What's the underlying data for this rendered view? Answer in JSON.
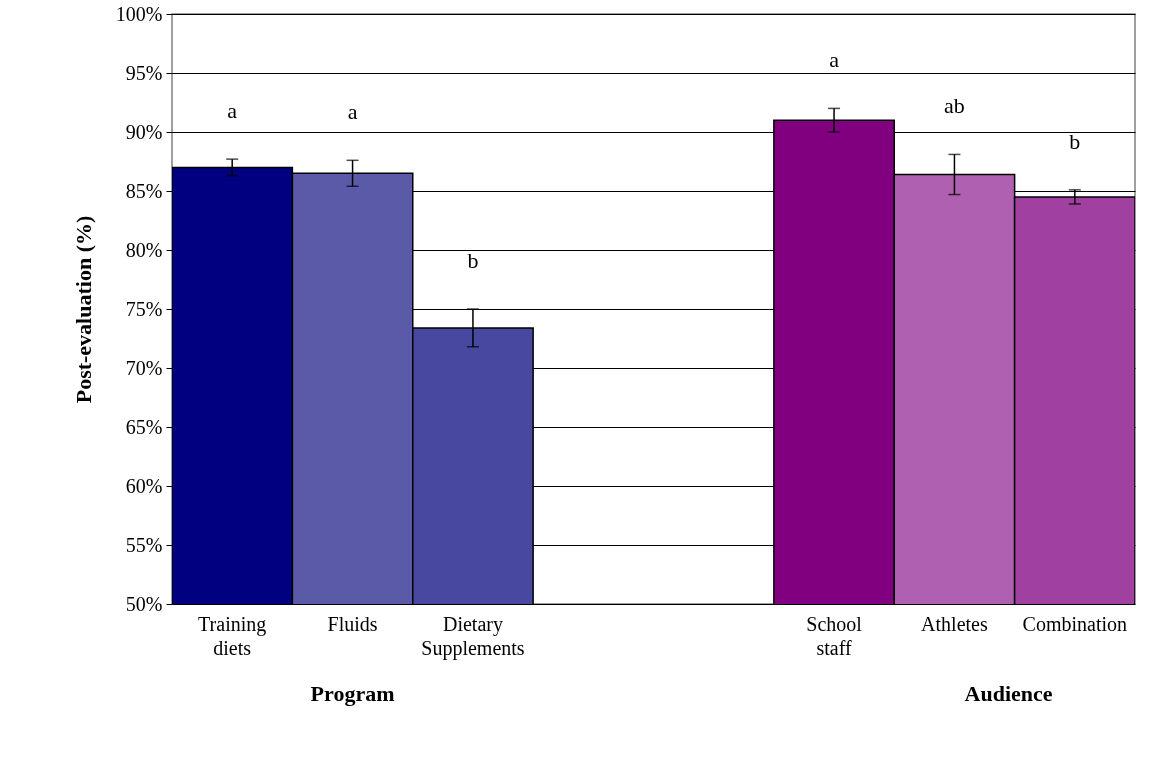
{
  "chart_data": {
    "type": "bar",
    "ylabel": "Post-evaluation (%)",
    "categories": [
      "Training diets",
      "Fluids",
      "Dietary Supplements",
      null,
      null,
      "School staff",
      "Athletes",
      "Combination"
    ],
    "values": [
      87,
      86.5,
      73.4,
      null,
      null,
      91,
      86.4,
      84.5
    ],
    "errors": [
      0.7,
      1.1,
      1.6,
      null,
      null,
      1,
      1.7,
      0.6
    ],
    "colors": [
      "#000080",
      "#5a5aa8",
      "#4848a0",
      null,
      null,
      "#800080",
      "#b060b0",
      "#a040a0"
    ],
    "ylim": [
      50,
      100
    ],
    "yticks": [
      {
        "value": 50,
        "label": "50%"
      },
      {
        "value": 55,
        "label": "55%"
      },
      {
        "value": 60,
        "label": "60%"
      },
      {
        "value": 65,
        "label": "65%"
      },
      {
        "value": 70,
        "label": "70%"
      },
      {
        "value": 75,
        "label": "75%"
      },
      {
        "value": 80,
        "label": "80%"
      },
      {
        "value": 85,
        "label": "85%"
      },
      {
        "value": 90,
        "label": "90%"
      },
      {
        "value": 95,
        "label": "95%"
      },
      {
        "value": 100,
        "label": "100%"
      }
    ],
    "grid": "y",
    "annotations": [
      "a",
      "a",
      "b",
      "a",
      "ab",
      "b",
      "Program",
      "Audience"
    ]
  }
}
